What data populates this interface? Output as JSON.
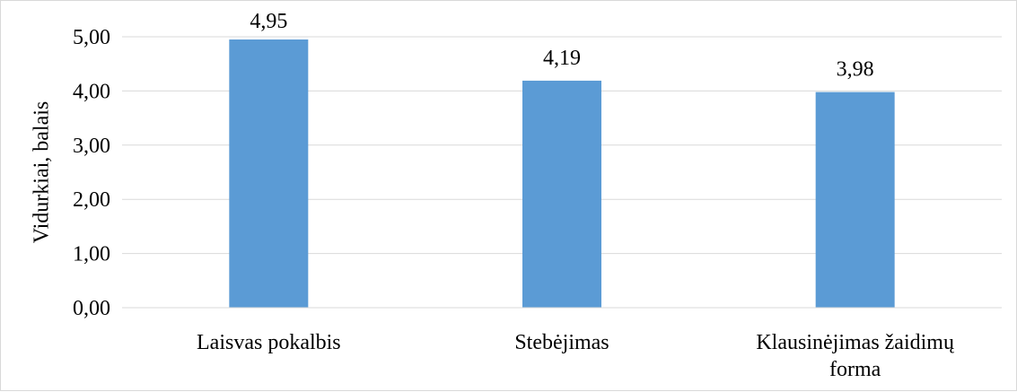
{
  "chart_data": {
    "type": "bar",
    "categories": [
      [
        "Laisvas pokalbis"
      ],
      [
        "Stebėjimas"
      ],
      [
        "Klausinėjimas žaidimų",
        "forma"
      ]
    ],
    "values": [
      4.95,
      4.19,
      3.98
    ],
    "value_labels": [
      "4,95",
      "4,19",
      "3,98"
    ],
    "ylabel": "Vidurkiai, balais",
    "xlabel": "",
    "ylim": [
      0,
      5
    ],
    "yticks": [
      {
        "value": 0,
        "label": "0,00"
      },
      {
        "value": 1,
        "label": "1,00"
      },
      {
        "value": 2,
        "label": "2,00"
      },
      {
        "value": 3,
        "label": "3,00"
      },
      {
        "value": 4,
        "label": "4,00"
      },
      {
        "value": 5,
        "label": "5,00"
      }
    ],
    "grid": true,
    "legend": "none",
    "colors": {
      "bar": "#5b9bd5",
      "grid": "#d9d9d9",
      "axis": "#d9d9d9",
      "border": "#d9d9d9",
      "text": "#000000"
    }
  }
}
